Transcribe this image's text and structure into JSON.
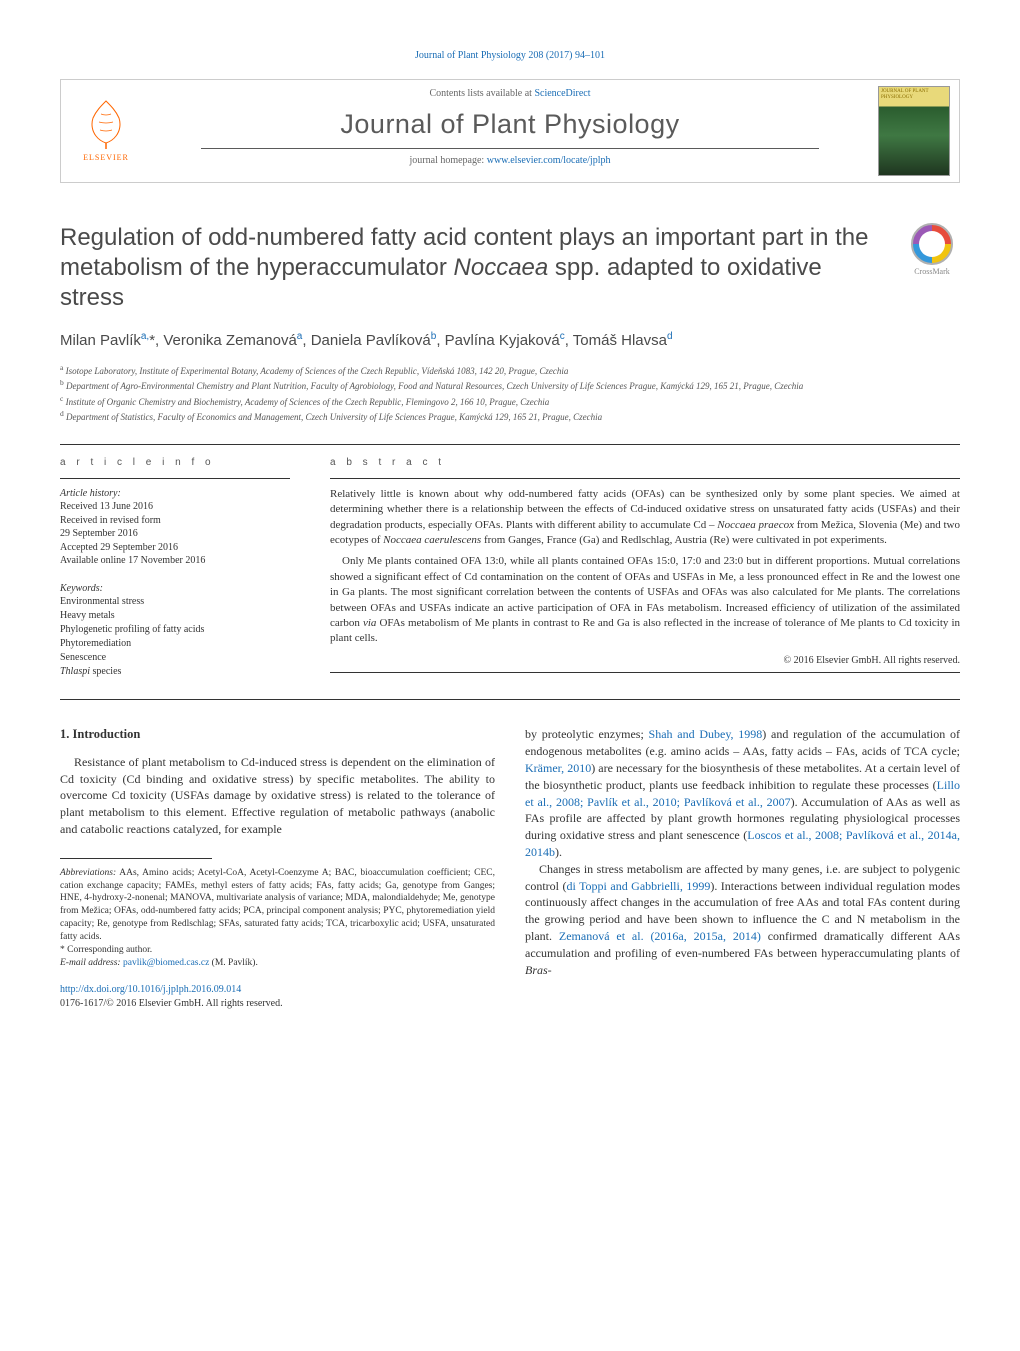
{
  "colors": {
    "link": "#1a6db5",
    "text": "#333333",
    "title_gray": "#4a4a4a",
    "elsevier_orange": "#ff6600",
    "background": "#ffffff",
    "border": "#cccccc"
  },
  "typography": {
    "body_font": "Georgia, Times New Roman, serif",
    "heading_font": "Helvetica Neue, Arial, sans-serif",
    "article_title_fontsize": 24,
    "journal_title_fontsize": 27,
    "authors_fontsize": 15,
    "body_fontsize": 12,
    "abstract_fontsize": 11,
    "affiliation_fontsize": 9,
    "footnote_fontsize": 9.5
  },
  "header_citation": "Journal of Plant Physiology 208 (2017) 94–101",
  "masthead": {
    "publisher_label": "ELSEVIER",
    "contents_prefix": "Contents lists available at ",
    "contents_link": "ScienceDirect",
    "journal_title": "Journal of Plant Physiology",
    "homepage_prefix": "journal homepage: ",
    "homepage_url": "www.elsevier.com/locate/jplph",
    "cover_title": "JOURNAL OF PLANT PHYSIOLOGY"
  },
  "crossmark_label": "CrossMark",
  "article": {
    "title_html": "Regulation of odd-numbered fatty acid content plays an important part in the metabolism of the hyperaccumulator <em>Noccaea</em> spp. adapted to oxidative stress",
    "authors_html": "Milan Pavlík<sup>a,</sup>*, Veronika Zemanová<sup>a</sup>, Daniela Pavlíková<sup>b</sup>, Pavlína Kyjaková<sup>c</sup>, Tomáš Hlavsa<sup>d</sup>",
    "affiliations": [
      {
        "sup": "a",
        "text": "Isotope Laboratory, Institute of Experimental Botany, Academy of Sciences of the Czech Republic, Vídeňská 1083, 142 20, Prague, Czechia"
      },
      {
        "sup": "b",
        "text": "Department of Agro-Environmental Chemistry and Plant Nutrition, Faculty of Agrobiology, Food and Natural Resources, Czech University of Life Sciences Prague, Kamýcká 129, 165 21, Prague, Czechia"
      },
      {
        "sup": "c",
        "text": "Institute of Organic Chemistry and Biochemistry, Academy of Sciences of the Czech Republic, Flemingovo 2, 166 10, Prague, Czechia"
      },
      {
        "sup": "d",
        "text": "Department of Statistics, Faculty of Economics and Management, Czech University of Life Sciences Prague, Kamýcká 129, 165 21, Prague, Czechia"
      }
    ]
  },
  "article_info_heading": "a r t i c l e   i n f o",
  "abstract_heading": "a b s t r a c t",
  "article_history": {
    "label": "Article history:",
    "items": [
      "Received 13 June 2016",
      "Received in revised form",
      "29 September 2016",
      "Accepted 29 September 2016",
      "Available online 17 November 2016"
    ]
  },
  "keywords": {
    "label": "Keywords:",
    "items": [
      "Environmental stress",
      "Heavy metals",
      "Phylogenetic profiling of fatty acids",
      "Phytoremediation",
      "Senescence",
      "Thlaspi species"
    ]
  },
  "abstract_paragraphs_html": [
    "Relatively little is known about why odd-numbered fatty acids (OFAs) can be synthesized only by some plant species. We aimed at determining whether there is a relationship between the effects of Cd-induced oxidative stress on unsaturated fatty acids (USFAs) and their degradation products, especially OFAs. Plants with different ability to accumulate Cd – <em>Noccaea praecox</em> from Mežica, Slovenia (Me) and two ecotypes of <em>Noccaea caerulescens</em> from Ganges, France (Ga) and Redlschlag, Austria (Re) were cultivated in pot experiments.",
    "Only Me plants contained OFA 13:0, while all plants contained OFAs 15:0, 17:0 and 23:0 but in different proportions. Mutual correlations showed a significant effect of Cd contamination on the content of OFAs and USFAs in Me, a less pronounced effect in Re and the lowest one in Ga plants. The most significant correlation between the contents of USFAs and OFAs was also calculated for Me plants. The correlations between OFAs and USFAs indicate an active participation of OFA in FAs metabolism. Increased efficiency of utilization of the assimilated carbon <em>via</em> OFAs metabolism of Me plants in contrast to Re and Ga is also reflected in the increase of tolerance of Me plants to Cd toxicity in plant cells."
  ],
  "abstract_copyright": "© 2016 Elsevier GmbH. All rights reserved.",
  "introduction": {
    "heading": "1. Introduction",
    "left_paragraph": "Resistance of plant metabolism to Cd-induced stress is dependent on the elimination of Cd toxicity (Cd binding and oxidative stress) by specific metabolites. The ability to overcome Cd toxicity (USFAs damage by oxidative stress) is related to the tolerance of plant metabolism to this element. Effective regulation of metabolic pathways (anabolic and catabolic reactions catalyzed, for example",
    "right_paragraph_1_html": "by proteolytic enzymes; <a href=\"#\">Shah and Dubey, 1998</a>) and regulation of the accumulation of endogenous metabolites (e.g. amino acids – AAs, fatty acids – FAs, acids of TCA cycle; <a href=\"#\">Krämer, 2010</a>) are necessary for the biosynthesis of these metabolites. At a certain level of the biosynthetic product, plants use feedback inhibition to regulate these processes (<a href=\"#\">Lillo et al., 2008; Pavlík et al., 2010; Pavlíková et al., 2007</a>). Accumulation of AAs as well as FAs profile are affected by plant growth hormones regulating physiological processes during oxidative stress and plant senescence (<a href=\"#\">Loscos et al., 2008; Pavlíková et al., 2014a, 2014b</a>).",
    "right_paragraph_2_html": "Changes in stress metabolism are affected by many genes, i.e. are subject to polygenic control (<a href=\"#\">di Toppi and Gabbrielli, 1999</a>). Interactions between individual regulation modes continuously affect changes in the accumulation of free AAs and total FAs content during the growing period and have been shown to influence the C and N metabolism in the plant. <a href=\"#\">Zemanová et al. (2016a, 2015a, 2014)</a> confirmed dramatically different AAs accumulation and profiling of even-numbered FAs between hyperaccumulating plants of <em>Bras-</em>"
  },
  "footnotes": {
    "abbrev_label": "Abbreviations:",
    "abbrev_text": " AAs, Amino acids; Acetyl-CoA, Acetyl-Coenzyme A; BAC, bioaccumulation coefficient; CEC, cation exchange capacity; FAMEs, methyl esters of fatty acids; FAs, fatty acids; Ga, genotype from Ganges; HNE, 4-hydroxy-2-nonenal; MANOVA, multivariate analysis of variance; MDA, malondialdehyde; Me, genotype from Mežica; OFAs, odd-numbered fatty acids; PCA, principal component analysis; PYC, phytoremediation yield capacity; Re, genotype from Redlschlag; SFAs, saturated fatty acids; TCA, tricarboxylic acid; USFA, unsaturated fatty acids.",
    "corresponding": "* Corresponding author.",
    "email_label": "E-mail address:",
    "email": "pavlik@biomed.cas.cz",
    "email_name": " (M. Pavlík)."
  },
  "doi": {
    "url": "http://dx.doi.org/10.1016/j.jplph.2016.09.014",
    "issn_line": "0176-1617/© 2016 Elsevier GmbH. All rights reserved."
  }
}
